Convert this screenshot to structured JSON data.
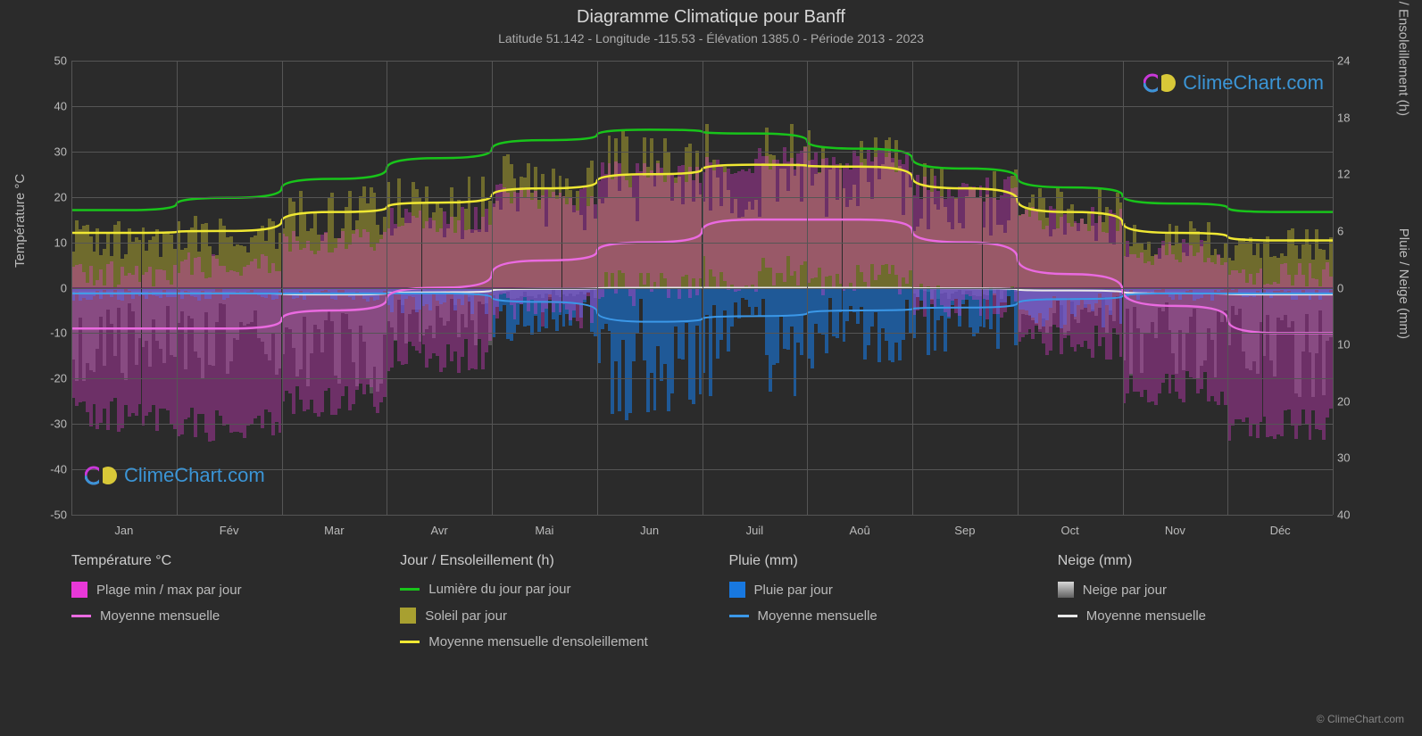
{
  "title": "Diagramme Climatique pour Banff",
  "subtitle": "Latitude 51.142 - Longitude -115.53 - Élévation 1385.0 - Période 2013 - 2023",
  "axes": {
    "left_title": "Température °C",
    "right_top_title": "Jour / Ensoleillement (h)",
    "right_bottom_title": "Pluie / Neige (mm)",
    "left_ticks": [
      50,
      40,
      30,
      20,
      10,
      0,
      -10,
      -20,
      -30,
      -40,
      -50
    ],
    "right_top_ticks": [
      24,
      18,
      12,
      6,
      0
    ],
    "right_bottom_ticks": [
      0,
      10,
      20,
      30,
      40
    ],
    "left_range": [
      -50,
      50
    ],
    "right_top_range": [
      0,
      24
    ],
    "right_bottom_range": [
      40,
      0
    ],
    "months": [
      "Jan",
      "Fév",
      "Mar",
      "Avr",
      "Mai",
      "Jun",
      "Juil",
      "Aoû",
      "Sep",
      "Oct",
      "Nov",
      "Déc"
    ]
  },
  "colors": {
    "bg": "#2b2b2b",
    "grid": "#555555",
    "text": "#c8c8c8",
    "daylight": "#18c41a",
    "sunshine_avg": "#f0e833",
    "sunshine_bar": "#a8a030",
    "temp_range": "#e838d8",
    "temp_avg": "#ea6ae0",
    "rain_bar": "#1878e0",
    "rain_avg": "#3b98e8",
    "snow_bar": "#808080",
    "snow_avg": "#e8e8e8",
    "watermark": "#3b95d6"
  },
  "series": {
    "daylight_h": [
      8.2,
      9.5,
      11.5,
      13.7,
      15.6,
      16.7,
      16.3,
      14.7,
      12.6,
      10.6,
      8.9,
      8.0
    ],
    "sunshine_avg_h": [
      5.8,
      6.0,
      8.0,
      9.0,
      10.5,
      12.0,
      13.0,
      12.8,
      10.5,
      8.0,
      5.8,
      5.0
    ],
    "temp_avg_c": [
      -9,
      -9,
      -5,
      0,
      6,
      10,
      15,
      15,
      10,
      3,
      -4,
      -10
    ],
    "rain_avg_mm": [
      1,
      1,
      1,
      1,
      2.5,
      6,
      5,
      4,
      3.5,
      2,
      1,
      1
    ],
    "snow_avg_mm": [
      1,
      1,
      1.2,
      0.8,
      0.2,
      0,
      0,
      0,
      0.1,
      0.5,
      1,
      1.2
    ],
    "temp_bars": [
      {
        "lo": -28,
        "hi": 3
      },
      {
        "lo": -30,
        "hi": 5
      },
      {
        "lo": -25,
        "hi": 10
      },
      {
        "lo": -15,
        "hi": 15
      },
      {
        "lo": -5,
        "hi": 20
      },
      {
        "lo": 0,
        "hi": 25
      },
      {
        "lo": 3,
        "hi": 28
      },
      {
        "lo": 2,
        "hi": 28
      },
      {
        "lo": -3,
        "hi": 22
      },
      {
        "lo": -12,
        "hi": 15
      },
      {
        "lo": -22,
        "hi": 8
      },
      {
        "lo": -30,
        "hi": 3
      }
    ],
    "sun_bars_h": [
      6,
      6.5,
      9,
      10,
      12,
      14,
      14.5,
      14,
      11,
      9,
      6,
      5.5
    ],
    "rain_bars_mm": [
      1,
      1,
      1,
      2,
      4,
      10,
      8,
      6,
      5,
      3,
      1,
      1
    ],
    "snow_bars_mm": [
      8,
      8,
      9,
      5,
      1,
      0,
      0,
      0,
      1,
      4,
      8,
      10
    ]
  },
  "legend": {
    "col1_header": "Température °C",
    "col1_item1": "Plage min / max par jour",
    "col1_item2": "Moyenne mensuelle",
    "col2_header": "Jour / Ensoleillement (h)",
    "col2_item1": "Lumière du jour par jour",
    "col2_item2": "Soleil par jour",
    "col2_item3": "Moyenne mensuelle d'ensoleillement",
    "col3_header": "Pluie (mm)",
    "col3_item1": "Pluie par jour",
    "col3_item2": "Moyenne mensuelle",
    "col4_header": "Neige (mm)",
    "col4_item1": "Neige par jour",
    "col4_item2": "Moyenne mensuelle"
  },
  "watermark_text": "ClimeChart.com",
  "copyright": "© ClimeChart.com"
}
